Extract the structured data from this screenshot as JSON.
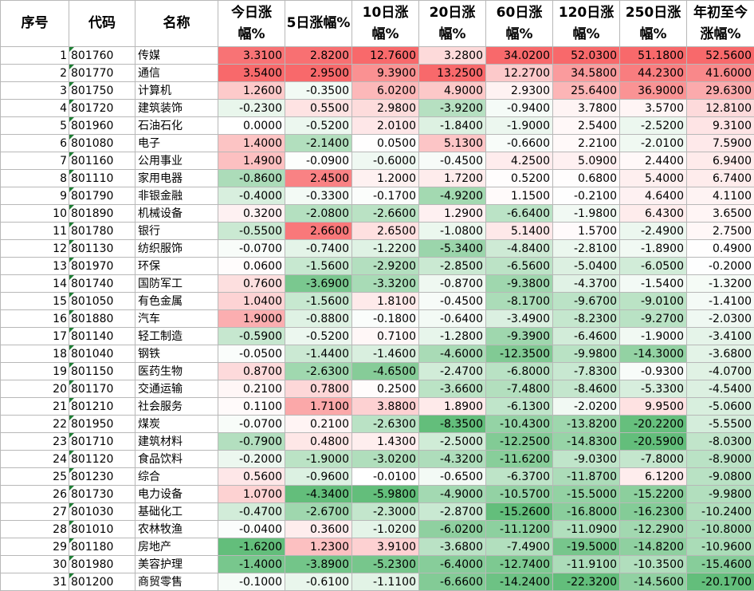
{
  "headers": [
    "序号",
    "代码",
    "名称",
    "今日涨幅%",
    "5日涨幅%",
    "10日涨幅%",
    "20日涨幅%",
    "60日涨幅%",
    "120日涨幅%",
    "250日涨幅%",
    "年初至今涨幅%"
  ],
  "rows": [
    {
      "idx": "1",
      "code": "801760",
      "name": "传媒",
      "values": [
        "3.3100",
        "2.8200",
        "12.7600",
        "3.2800",
        "34.0200",
        "52.0300",
        "51.1800",
        "52.5600"
      ]
    },
    {
      "idx": "2",
      "code": "801770",
      "name": "通信",
      "values": [
        "3.5400",
        "2.9500",
        "9.3900",
        "13.2500",
        "12.2700",
        "34.5800",
        "44.2300",
        "41.6000"
      ]
    },
    {
      "idx": "3",
      "code": "801750",
      "name": "计算机",
      "values": [
        "1.2600",
        "-0.3500",
        "6.0200",
        "4.9000",
        "2.9300",
        "25.6400",
        "36.9000",
        "29.6300"
      ]
    },
    {
      "idx": "4",
      "code": "801720",
      "name": "建筑装饰",
      "values": [
        "-0.2300",
        "0.5500",
        "2.9800",
        "-3.9200",
        "-0.9400",
        "3.7800",
        "3.5700",
        "12.8100"
      ]
    },
    {
      "idx": "5",
      "code": "801960",
      "name": "石油石化",
      "values": [
        "0.0000",
        "-0.5200",
        "2.0100",
        "-1.8400",
        "-1.9000",
        "2.5400",
        "-2.5200",
        "9.3100"
      ]
    },
    {
      "idx": "6",
      "code": "801080",
      "name": "电子",
      "values": [
        "1.4000",
        "-2.1400",
        "0.0500",
        "5.1300",
        "-0.6600",
        "2.2100",
        "-2.0100",
        "7.5900"
      ]
    },
    {
      "idx": "7",
      "code": "801160",
      "name": "公用事业",
      "values": [
        "1.4900",
        "-0.0900",
        "-0.6000",
        "-0.4500",
        "4.2500",
        "5.0900",
        "2.4400",
        "6.9400"
      ]
    },
    {
      "idx": "8",
      "code": "801110",
      "name": "家用电器",
      "values": [
        "-0.8600",
        "2.4500",
        "1.2000",
        "1.7200",
        "0.5200",
        "0.6800",
        "5.4000",
        "6.7400"
      ]
    },
    {
      "idx": "9",
      "code": "801790",
      "name": "非银金融",
      "values": [
        "-0.4000",
        "-0.3300",
        "-0.1700",
        "-4.9200",
        "1.1500",
        "-0.2100",
        "4.6400",
        "4.1100"
      ]
    },
    {
      "idx": "10",
      "code": "801890",
      "name": "机械设备",
      "values": [
        "0.3200",
        "-2.0800",
        "-2.6600",
        "1.2900",
        "-6.6400",
        "-1.9800",
        "6.4300",
        "3.6500"
      ]
    },
    {
      "idx": "11",
      "code": "801780",
      "name": "银行",
      "values": [
        "-0.5500",
        "2.6600",
        "2.6500",
        "-1.0800",
        "5.1400",
        "1.5700",
        "-2.4900",
        "2.7500"
      ]
    },
    {
      "idx": "12",
      "code": "801130",
      "name": "纺织服饰",
      "values": [
        "-0.0700",
        "-0.7400",
        "-1.2200",
        "-5.3400",
        "-4.8400",
        "-2.8100",
        "-1.8900",
        "0.4900"
      ]
    },
    {
      "idx": "13",
      "code": "801970",
      "name": "环保",
      "values": [
        "0.0600",
        "-1.5600",
        "-2.9200",
        "-2.8500",
        "-6.5600",
        "-5.0400",
        "-6.0500",
        "-0.2000"
      ]
    },
    {
      "idx": "14",
      "code": "801740",
      "name": "国防军工",
      "values": [
        "0.7600",
        "-3.6900",
        "-3.3200",
        "-0.8700",
        "-9.3800",
        "-4.3700",
        "-1.5400",
        "-1.3200"
      ]
    },
    {
      "idx": "15",
      "code": "801050",
      "name": "有色金属",
      "values": [
        "1.0400",
        "-1.5600",
        "1.8100",
        "-0.4500",
        "-8.1700",
        "-9.6700",
        "-9.0100",
        "-1.4100"
      ]
    },
    {
      "idx": "16",
      "code": "801880",
      "name": "汽车",
      "values": [
        "1.9000",
        "-0.8800",
        "-0.1800",
        "-0.6400",
        "-3.4900",
        "-8.2300",
        "-9.2700",
        "-2.0300"
      ]
    },
    {
      "idx": "17",
      "code": "801140",
      "name": "轻工制造",
      "values": [
        "-0.5900",
        "-0.5200",
        "0.7100",
        "-1.2800",
        "-9.3900",
        "-6.4600",
        "-1.9000",
        "-3.4100"
      ]
    },
    {
      "idx": "18",
      "code": "801040",
      "name": "钢铁",
      "values": [
        "-0.0500",
        "-1.4400",
        "-1.4600",
        "-4.6000",
        "-12.3500",
        "-9.9800",
        "-14.3000",
        "-3.6800"
      ]
    },
    {
      "idx": "19",
      "code": "801150",
      "name": "医药生物",
      "values": [
        "0.8700",
        "-2.6300",
        "-4.6500",
        "-2.4700",
        "-6.8000",
        "-7.8300",
        "-0.9300",
        "-4.0700"
      ]
    },
    {
      "idx": "20",
      "code": "801170",
      "name": "交通运输",
      "values": [
        "0.2100",
        "0.7800",
        "0.2500",
        "-3.6600",
        "-7.4800",
        "-8.4600",
        "-5.3300",
        "-4.5400"
      ]
    },
    {
      "idx": "21",
      "code": "801210",
      "name": "社会服务",
      "values": [
        "0.1100",
        "1.7100",
        "3.8800",
        "1.8900",
        "-6.1300",
        "-2.0200",
        "9.9500",
        "-5.0600"
      ]
    },
    {
      "idx": "22",
      "code": "801950",
      "name": "煤炭",
      "values": [
        "-0.0700",
        "0.2100",
        "-2.6300",
        "-8.3500",
        "-10.4300",
        "-13.8200",
        "-20.2200",
        "-5.5500"
      ]
    },
    {
      "idx": "23",
      "code": "801710",
      "name": "建筑材料",
      "values": [
        "-0.7900",
        "0.4800",
        "1.4300",
        "-2.5000",
        "-12.2500",
        "-14.8300",
        "-20.5900",
        "-8.0300"
      ]
    },
    {
      "idx": "24",
      "code": "801120",
      "name": "食品饮料",
      "values": [
        "-0.2000",
        "-1.9000",
        "-3.0200",
        "-4.3200",
        "-11.6200",
        "-9.0300",
        "-7.8000",
        "-8.9000"
      ]
    },
    {
      "idx": "25",
      "code": "801230",
      "name": "综合",
      "values": [
        "0.5600",
        "-0.9600",
        "-0.0100",
        "-0.6500",
        "-6.3700",
        "-11.8700",
        "6.1200",
        "-9.0800"
      ]
    },
    {
      "idx": "26",
      "code": "801730",
      "name": "电力设备",
      "values": [
        "1.0700",
        "-4.3400",
        "-5.9800",
        "-4.9000",
        "-10.5700",
        "-15.5000",
        "-15.2200",
        "-9.9800"
      ]
    },
    {
      "idx": "27",
      "code": "801030",
      "name": "基础化工",
      "values": [
        "-0.4700",
        "-2.6700",
        "-2.3000",
        "-2.8700",
        "-15.2600",
        "-16.8000",
        "-16.2300",
        "-10.2400"
      ]
    },
    {
      "idx": "28",
      "code": "801010",
      "name": "农林牧渔",
      "values": [
        "-0.0400",
        "0.3600",
        "-1.0200",
        "-6.0200",
        "-11.1200",
        "-11.0900",
        "-12.2900",
        "-10.8000"
      ]
    },
    {
      "idx": "29",
      "code": "801180",
      "name": "房地产",
      "values": [
        "-1.6200",
        "1.2300",
        "3.9100",
        "-3.6800",
        "-7.4900",
        "-19.5000",
        "-14.8200",
        "-10.9600"
      ]
    },
    {
      "idx": "30",
      "code": "801980",
      "name": "美容护理",
      "values": [
        "-1.4000",
        "-3.8900",
        "-5.2300",
        "-6.4000",
        "-12.7400",
        "-11.9100",
        "-10.3500",
        "-15.4600"
      ]
    },
    {
      "idx": "31",
      "code": "801200",
      "name": "商贸零售",
      "values": [
        "-0.1000",
        "-0.6100",
        "-1.1100",
        "-6.6600",
        "-14.2400",
        "-22.3200",
        "-14.5600",
        "-20.1700"
      ]
    }
  ]
}
